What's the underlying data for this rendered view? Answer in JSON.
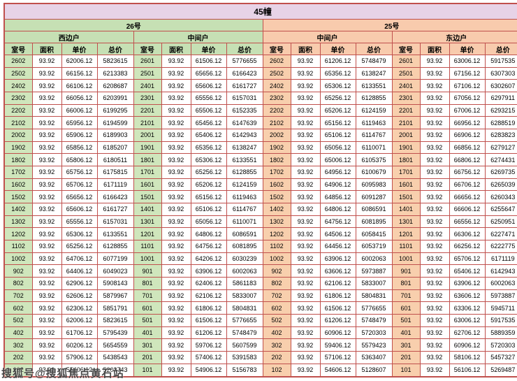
{
  "title": "45幢",
  "watermark": "搜狐号@搜狐焦点黄石站",
  "sections": [
    {
      "label": "26号"
    },
    {
      "label": "25号"
    }
  ],
  "unit_types": [
    "西边户",
    "中间户",
    "中间户",
    "东边户"
  ],
  "column_headers": [
    "室号",
    "面积",
    "单价",
    "总价"
  ],
  "colors": {
    "green": "#c6e0b4",
    "green_cell": "#cfe6bc",
    "peach": "#f8cbad",
    "peach_cell": "#f8cfad",
    "title_bg": "#e7d3e7",
    "border": "#c0504d"
  },
  "rows": [
    [
      "2602",
      "93.92",
      "62006.12",
      "5823615",
      "2601",
      "93.92",
      "61506.12",
      "5776655",
      "2602",
      "93.92",
      "61206.12",
      "5748479",
      "2601",
      "93.92",
      "63006.12",
      "5917535"
    ],
    [
      "2502",
      "93.92",
      "66156.12",
      "6213383",
      "2501",
      "93.92",
      "65656.12",
      "6166423",
      "2502",
      "93.92",
      "65356.12",
      "6138247",
      "2501",
      "93.92",
      "67156.12",
      "6307303"
    ],
    [
      "2402",
      "93.92",
      "66106.12",
      "6208687",
      "2401",
      "93.92",
      "65606.12",
      "6161727",
      "2402",
      "93.92",
      "65306.12",
      "6133551",
      "2401",
      "93.92",
      "67106.12",
      "6302607"
    ],
    [
      "2302",
      "93.92",
      "66056.12",
      "6203991",
      "2301",
      "93.92",
      "65556.12",
      "6157031",
      "2302",
      "93.92",
      "65256.12",
      "6128855",
      "2301",
      "93.92",
      "67056.12",
      "6297911"
    ],
    [
      "2202",
      "93.92",
      "66006.12",
      "6199295",
      "2201",
      "93.92",
      "65506.12",
      "6152335",
      "2202",
      "93.92",
      "65206.12",
      "6124159",
      "2201",
      "93.92",
      "67006.12",
      "6293215"
    ],
    [
      "2102",
      "93.92",
      "65956.12",
      "6194599",
      "2101",
      "93.92",
      "65456.12",
      "6147639",
      "2102",
      "93.92",
      "65156.12",
      "6119463",
      "2101",
      "93.92",
      "66956.12",
      "6288519"
    ],
    [
      "2002",
      "93.92",
      "65906.12",
      "6189903",
      "2001",
      "93.92",
      "65406.12",
      "6142943",
      "2002",
      "93.92",
      "65106.12",
      "6114767",
      "2001",
      "93.92",
      "66906.12",
      "6283823"
    ],
    [
      "1902",
      "93.92",
      "65856.12",
      "6185207",
      "1901",
      "93.92",
      "65356.12",
      "6138247",
      "1902",
      "93.92",
      "65056.12",
      "6110071",
      "1901",
      "93.92",
      "66856.12",
      "6279127"
    ],
    [
      "1802",
      "93.92",
      "65806.12",
      "6180511",
      "1801",
      "93.92",
      "65306.12",
      "6133551",
      "1802",
      "93.92",
      "65006.12",
      "6105375",
      "1801",
      "93.92",
      "66806.12",
      "6274431"
    ],
    [
      "1702",
      "93.92",
      "65756.12",
      "6175815",
      "1701",
      "93.92",
      "65256.12",
      "6128855",
      "1702",
      "93.92",
      "64956.12",
      "6100679",
      "1701",
      "93.92",
      "66756.12",
      "6269735"
    ],
    [
      "1602",
      "93.92",
      "65706.12",
      "6171119",
      "1601",
      "93.92",
      "65206.12",
      "6124159",
      "1602",
      "93.92",
      "64906.12",
      "6095983",
      "1601",
      "93.92",
      "66706.12",
      "6265039"
    ],
    [
      "1502",
      "93.92",
      "65656.12",
      "6166423",
      "1501",
      "93.92",
      "65156.12",
      "6119463",
      "1502",
      "93.92",
      "64856.12",
      "6091287",
      "1501",
      "93.92",
      "66656.12",
      "6260343"
    ],
    [
      "1402",
      "93.92",
      "65606.12",
      "6161727",
      "1401",
      "93.92",
      "65106.12",
      "6114767",
      "1402",
      "93.92",
      "64806.12",
      "6086591",
      "1401",
      "93.92",
      "66606.12",
      "6255647"
    ],
    [
      "1302",
      "93.92",
      "65556.12",
      "6157031",
      "1301",
      "93.92",
      "65056.12",
      "6110071",
      "1302",
      "93.92",
      "64756.12",
      "6081895",
      "1301",
      "93.92",
      "66556.12",
      "6250951"
    ],
    [
      "1202",
      "93.92",
      "65306.12",
      "6133551",
      "1201",
      "93.92",
      "64806.12",
      "6086591",
      "1202",
      "93.92",
      "64506.12",
      "6058415",
      "1201",
      "93.92",
      "66306.12",
      "6227471"
    ],
    [
      "1102",
      "93.92",
      "65256.12",
      "6128855",
      "1101",
      "93.92",
      "64756.12",
      "6081895",
      "1102",
      "93.92",
      "64456.12",
      "6053719",
      "1101",
      "93.92",
      "66256.12",
      "6222775"
    ],
    [
      "1002",
      "93.92",
      "64706.12",
      "6077199",
      "1001",
      "93.92",
      "64206.12",
      "6030239",
      "1002",
      "93.92",
      "63906.12",
      "6002063",
      "1001",
      "93.92",
      "65706.12",
      "6171119"
    ],
    [
      "902",
      "93.92",
      "64406.12",
      "6049023",
      "901",
      "93.92",
      "63906.12",
      "6002063",
      "902",
      "93.92",
      "63606.12",
      "5973887",
      "901",
      "93.92",
      "65406.12",
      "6142943"
    ],
    [
      "802",
      "93.92",
      "62906.12",
      "5908143",
      "801",
      "93.92",
      "62406.12",
      "5861183",
      "802",
      "93.92",
      "62106.12",
      "5833007",
      "801",
      "93.92",
      "63906.12",
      "6002063"
    ],
    [
      "702",
      "93.92",
      "62606.12",
      "5879967",
      "701",
      "93.92",
      "62106.12",
      "5833007",
      "702",
      "93.92",
      "61806.12",
      "5804831",
      "701",
      "93.92",
      "63606.12",
      "5973887"
    ],
    [
      "602",
      "93.92",
      "62306.12",
      "5851791",
      "601",
      "93.92",
      "61806.12",
      "5804831",
      "602",
      "93.92",
      "61506.12",
      "5776655",
      "601",
      "93.92",
      "63306.12",
      "5945711"
    ],
    [
      "502",
      "93.92",
      "62006.12",
      "5823615",
      "501",
      "93.92",
      "61506.12",
      "5776655",
      "502",
      "93.92",
      "61206.12",
      "5748479",
      "501",
      "93.92",
      "63006.12",
      "5917535"
    ],
    [
      "402",
      "93.92",
      "61706.12",
      "5795439",
      "401",
      "93.92",
      "61206.12",
      "5748479",
      "402",
      "93.92",
      "60906.12",
      "5720303",
      "401",
      "93.92",
      "62706.12",
      "5889359"
    ],
    [
      "302",
      "93.92",
      "60206.12",
      "5654559",
      "301",
      "93.92",
      "59706.12",
      "5607599",
      "302",
      "93.92",
      "59406.12",
      "5579423",
      "301",
      "93.92",
      "60906.12",
      "5720303"
    ],
    [
      "202",
      "93.92",
      "57906.12",
      "5438543",
      "201",
      "93.92",
      "57406.12",
      "5391583",
      "202",
      "93.92",
      "57106.12",
      "5363407",
      "201",
      "93.92",
      "58106.12",
      "5457327"
    ],
    [
      "102",
      "93.92",
      "55406.12",
      "5203743",
      "101",
      "93.92",
      "54906.12",
      "5156783",
      "102",
      "93.92",
      "54606.12",
      "5128607",
      "101",
      "93.92",
      "56106.12",
      "5269487"
    ]
  ]
}
